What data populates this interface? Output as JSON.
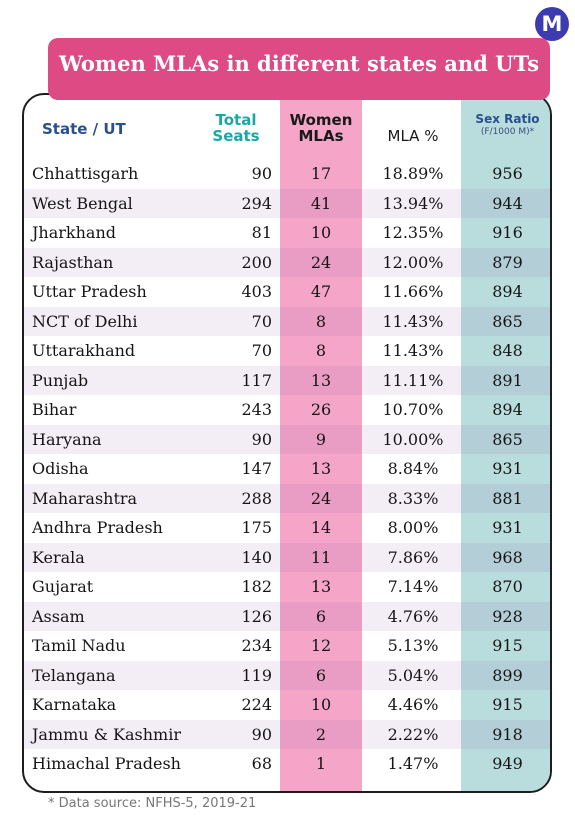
{
  "brand": {
    "logo_letter": "M"
  },
  "title": "Women MLAs in different states and UTs",
  "headers": {
    "state": "State / UT",
    "seats_l1": "Total",
    "seats_l2": "Seats",
    "women_l1": "Women",
    "women_l2": "MLAs",
    "pct": "MLA %",
    "ratio": "Sex Ratio",
    "ratio_sub": "(F/1000 M)*"
  },
  "footnote": "* Data source: NFHS-5, 2019-21",
  "colors": {
    "title_bg": "#dd4a84",
    "women_col": "#f4a5c8",
    "ratio_col": "#b9dcdd",
    "state_header": "#2a4f8f",
    "seats_header": "#18a8a6"
  },
  "chart_data": {
    "type": "table",
    "title": "Women MLAs in different states and UTs",
    "columns": [
      "State / UT",
      "Total Seats",
      "Women MLAs",
      "MLA %",
      "Sex Ratio (F/1000 M)*"
    ],
    "rows": [
      {
        "state": "Chhattisgarh",
        "seats": "90",
        "women": "17",
        "pct": "18.89%",
        "ratio": "956"
      },
      {
        "state": "West Bengal",
        "seats": "294",
        "women": "41",
        "pct": "13.94%",
        "ratio": "944"
      },
      {
        "state": "Jharkhand",
        "seats": "81",
        "women": "10",
        "pct": "12.35%",
        "ratio": "916"
      },
      {
        "state": "Rajasthan",
        "seats": "200",
        "women": "24",
        "pct": "12.00%",
        "ratio": "879"
      },
      {
        "state": "Uttar Pradesh",
        "seats": "403",
        "women": "47",
        "pct": "11.66%",
        "ratio": "894"
      },
      {
        "state": "NCT of Delhi",
        "seats": "70",
        "women": "8",
        "pct": "11.43%",
        "ratio": "865"
      },
      {
        "state": "Uttarakhand",
        "seats": "70",
        "women": "8",
        "pct": "11.43%",
        "ratio": "848"
      },
      {
        "state": "Punjab",
        "seats": "117",
        "women": "13",
        "pct": "11.11%",
        "ratio": "891"
      },
      {
        "state": "Bihar",
        "seats": "243",
        "women": "26",
        "pct": "10.70%",
        "ratio": "894"
      },
      {
        "state": "Haryana",
        "seats": "90",
        "women": "9",
        "pct": "10.00%",
        "ratio": "865"
      },
      {
        "state": "Odisha",
        "seats": "147",
        "women": "13",
        "pct": "8.84%",
        "ratio": "931"
      },
      {
        "state": "Maharashtra",
        "seats": "288",
        "women": "24",
        "pct": "8.33%",
        "ratio": "881"
      },
      {
        "state": "Andhra Pradesh",
        "seats": "175",
        "women": "14",
        "pct": "8.00%",
        "ratio": "931"
      },
      {
        "state": "Kerala",
        "seats": "140",
        "women": "11",
        "pct": "7.86%",
        "ratio": "968"
      },
      {
        "state": "Gujarat",
        "seats": "182",
        "women": "13",
        "pct": "7.14%",
        "ratio": "870"
      },
      {
        "state": "Assam",
        "seats": "126",
        "women": "6",
        "pct": "4.76%",
        "ratio": "928"
      },
      {
        "state": "Tamil Nadu",
        "seats": "234",
        "women": "12",
        "pct": "5.13%",
        "ratio": "915"
      },
      {
        "state": "Telangana",
        "seats": "119",
        "women": "6",
        "pct": "5.04%",
        "ratio": "899"
      },
      {
        "state": "Karnataka",
        "seats": "224",
        "women": "10",
        "pct": "4.46%",
        "ratio": "915"
      },
      {
        "state": "Jammu & Kashmir",
        "seats": "90",
        "women": "2",
        "pct": "2.22%",
        "ratio": "918"
      },
      {
        "state": "Himachal Pradesh",
        "seats": "68",
        "women": "1",
        "pct": "1.47%",
        "ratio": "949"
      }
    ]
  }
}
